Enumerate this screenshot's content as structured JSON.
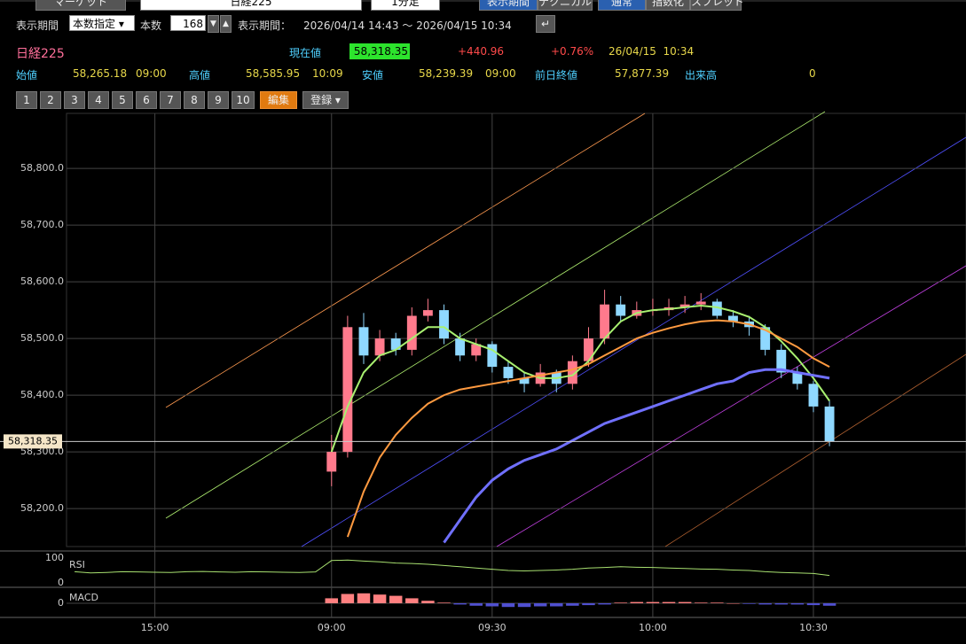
{
  "toolbar": {
    "top_items": [
      "マーケット",
      "日経225",
      "1分足",
      "表示期間",
      "テクニカル",
      "通常",
      "指数化",
      "スプレッド"
    ],
    "period_label": "表示期間",
    "period_mode": "本数指定",
    "count_label": "本数",
    "count": "168",
    "range_label": "表示期間：",
    "range": "2026/04/14 14:43 ～ 2026/04/15 10:34"
  },
  "quote": {
    "name": "日経225",
    "current_label": "現在値",
    "current": "58,318.35",
    "change": "+440.96",
    "change_pct": "+0.76%",
    "time": "26/04/15  10:34",
    "open_label": "始値",
    "open": "58,265.18",
    "open_time": "09:00",
    "high_label": "高値",
    "high": "58,585.95",
    "high_time": "10:09",
    "low_label": "安値",
    "low": "58,239.39",
    "low_time": "09:00",
    "prev_label": "前日終値",
    "prev": "57,877.39",
    "volume_label": "出来高",
    "volume": "0"
  },
  "preset_buttons": [
    "1",
    "2",
    "3",
    "4",
    "5",
    "6",
    "7",
    "8",
    "9",
    "10"
  ],
  "edit_button": "編集",
  "register_button": "登録",
  "chart_data": [
    {
      "type": "candlestick",
      "categories": [
        null,
        null,
        null,
        null,
        null,
        "15:00",
        null,
        null,
        null,
        null,
        null,
        null,
        null,
        null,
        null,
        null,
        "09:00",
        null,
        null,
        null,
        null,
        null,
        null,
        null,
        null,
        null,
        "09:30",
        null,
        null,
        null,
        null,
        null,
        null,
        null,
        null,
        null,
        "10:00",
        null,
        null,
        null,
        null,
        null,
        null,
        null,
        null,
        null,
        "10:30",
        null,
        null,
        null,
        null,
        null,
        null,
        null,
        null,
        null
      ],
      "open": [
        null,
        null,
        null,
        null,
        null,
        null,
        null,
        null,
        null,
        null,
        null,
        null,
        null,
        null,
        null,
        null,
        58265.18,
        58300,
        58520,
        58470,
        58500,
        58480,
        58540,
        58550,
        58500,
        58470,
        58490,
        58450,
        58430,
        58420,
        58440,
        58420,
        58460,
        58500,
        58560,
        58540,
        58550,
        58550,
        58555,
        58560,
        58565,
        58540,
        58530,
        58520,
        58480,
        58440,
        58420,
        58380,
        null,
        null,
        null,
        null,
        null,
        null,
        null,
        null
      ],
      "high": [
        null,
        null,
        null,
        null,
        null,
        null,
        null,
        null,
        null,
        null,
        null,
        null,
        null,
        null,
        null,
        null,
        58330,
        58540,
        58545,
        58515,
        58510,
        58555,
        58570,
        58560,
        58510,
        58500,
        58495,
        58460,
        58440,
        58455,
        58445,
        58470,
        58520,
        58585.95,
        58575,
        58565,
        58570,
        58570,
        58575,
        58580,
        58570,
        58550,
        58540,
        58525,
        58490,
        58450,
        58425,
        58390,
        null,
        null,
        null,
        null,
        null,
        null,
        null,
        null
      ],
      "low": [
        null,
        null,
        null,
        null,
        null,
        null,
        null,
        null,
        null,
        null,
        null,
        null,
        null,
        null,
        null,
        null,
        58239.39,
        58290,
        58455,
        58460,
        58470,
        58470,
        58530,
        58490,
        58460,
        58460,
        58440,
        58420,
        58405,
        58415,
        58405,
        58410,
        58450,
        58490,
        58530,
        58535,
        58540,
        58540,
        58545,
        58550,
        58535,
        58520,
        58505,
        58470,
        58430,
        58410,
        58370,
        58310,
        null,
        null,
        null,
        null,
        null,
        null,
        null,
        null
      ],
      "close": [
        null,
        null,
        null,
        null,
        null,
        null,
        null,
        null,
        null,
        null,
        null,
        null,
        null,
        null,
        null,
        null,
        58300,
        58520,
        58470,
        58500,
        58480,
        58540,
        58550,
        58500,
        58470,
        58490,
        58450,
        58430,
        58420,
        58440,
        58420,
        58460,
        58500,
        58560,
        58540,
        58550,
        58550,
        58555,
        58560,
        58565,
        58540,
        58530,
        58520,
        58480,
        58440,
        58420,
        58380,
        58318.35,
        null,
        null,
        null,
        null,
        null,
        null,
        null,
        null
      ],
      "up_color": "#ff7a8c",
      "down_color": "#8fd8ff",
      "lines": [
        {
          "color": "#a8f070",
          "values": [
            null,
            null,
            null,
            null,
            null,
            null,
            null,
            null,
            null,
            null,
            null,
            null,
            null,
            null,
            null,
            null,
            58300,
            58380,
            58440,
            58470,
            58480,
            58500,
            58520,
            58520,
            58500,
            58490,
            58480,
            58460,
            58440,
            58430,
            58430,
            58435,
            58460,
            58500,
            58530,
            58545,
            58550,
            58552,
            58555,
            58558,
            58555,
            58548,
            58538,
            58520,
            58495,
            58465,
            58430,
            58390,
            null,
            null,
            null,
            null,
            null,
            null,
            null,
            null
          ]
        },
        {
          "color": "#ff9a40",
          "values": [
            null,
            null,
            null,
            null,
            null,
            null,
            null,
            null,
            null,
            null,
            null,
            null,
            null,
            null,
            null,
            null,
            null,
            58150,
            58230,
            58290,
            58330,
            58360,
            58385,
            58400,
            58410,
            58415,
            58420,
            58425,
            58430,
            58435,
            58440,
            58445,
            58455,
            58470,
            58485,
            58500,
            58510,
            58518,
            58525,
            58530,
            58532,
            58530,
            58525,
            58515,
            58500,
            58485,
            58465,
            58450,
            null,
            null,
            null,
            null,
            null,
            null,
            null,
            null
          ]
        },
        {
          "color": "#7070ff",
          "values": [
            null,
            null,
            null,
            null,
            null,
            null,
            null,
            null,
            null,
            null,
            null,
            null,
            null,
            null,
            null,
            null,
            null,
            null,
            null,
            null,
            null,
            null,
            null,
            58140,
            58180,
            58220,
            58250,
            58270,
            58285,
            58295,
            58305,
            58320,
            58335,
            58350,
            58360,
            58370,
            58380,
            58390,
            58400,
            58410,
            58420,
            58425,
            58440,
            58445,
            58445,
            58440,
            58435,
            58430,
            null,
            null,
            null,
            null,
            null,
            null,
            null,
            null
          ]
        }
      ],
      "current_price": {
        "value": 58318.35,
        "label": "58,318.35"
      },
      "ylim": [
        58133,
        58897
      ],
      "yticks": [
        {
          "value": 58200,
          "label": "58,200.0"
        },
        {
          "value": 58300,
          "label": "58,300.0"
        },
        {
          "value": 58400,
          "label": "58,400.0"
        },
        {
          "value": 58500,
          "label": "58,500.0"
        },
        {
          "value": 58600,
          "label": "58,600.0"
        },
        {
          "value": 58700,
          "label": "58,700.0"
        },
        {
          "value": 58800,
          "label": "58,800.0"
        }
      ],
      "grid": true
    },
    {
      "type": "line",
      "title": "RSI",
      "color": "#a8e070",
      "values": [
        45,
        40,
        42,
        45,
        44,
        43,
        42,
        45,
        46,
        44,
        43,
        45,
        44,
        43,
        42,
        44,
        90,
        92,
        88,
        85,
        80,
        78,
        75,
        70,
        65,
        60,
        55,
        50,
        48,
        50,
        52,
        55,
        60,
        62,
        65,
        63,
        62,
        60,
        58,
        56,
        55,
        52,
        50,
        45,
        42,
        40,
        38,
        30,
        null,
        null,
        null,
        null,
        null,
        null,
        null,
        null
      ],
      "ylim": [
        0,
        100
      ],
      "yticks": [
        0,
        100
      ]
    },
    {
      "type": "bar",
      "title": "MACD",
      "up_color": "#ff8080",
      "down_color": "#5050d0",
      "values": [
        null,
        null,
        null,
        null,
        null,
        null,
        null,
        null,
        null,
        null,
        null,
        null,
        null,
        null,
        null,
        null,
        8,
        15,
        16,
        14,
        12,
        8,
        4,
        1,
        -2,
        -4,
        -5,
        -6,
        -6,
        -5,
        -5,
        -4,
        -3,
        -2,
        1,
        2,
        2,
        2,
        2,
        1,
        1,
        0,
        -1,
        -2,
        -2,
        -2,
        -3,
        -4,
        null,
        null,
        null,
        null,
        null,
        null,
        null,
        null
      ],
      "ylim": [
        -20,
        20
      ],
      "yticks": [
        0
      ]
    }
  ]
}
